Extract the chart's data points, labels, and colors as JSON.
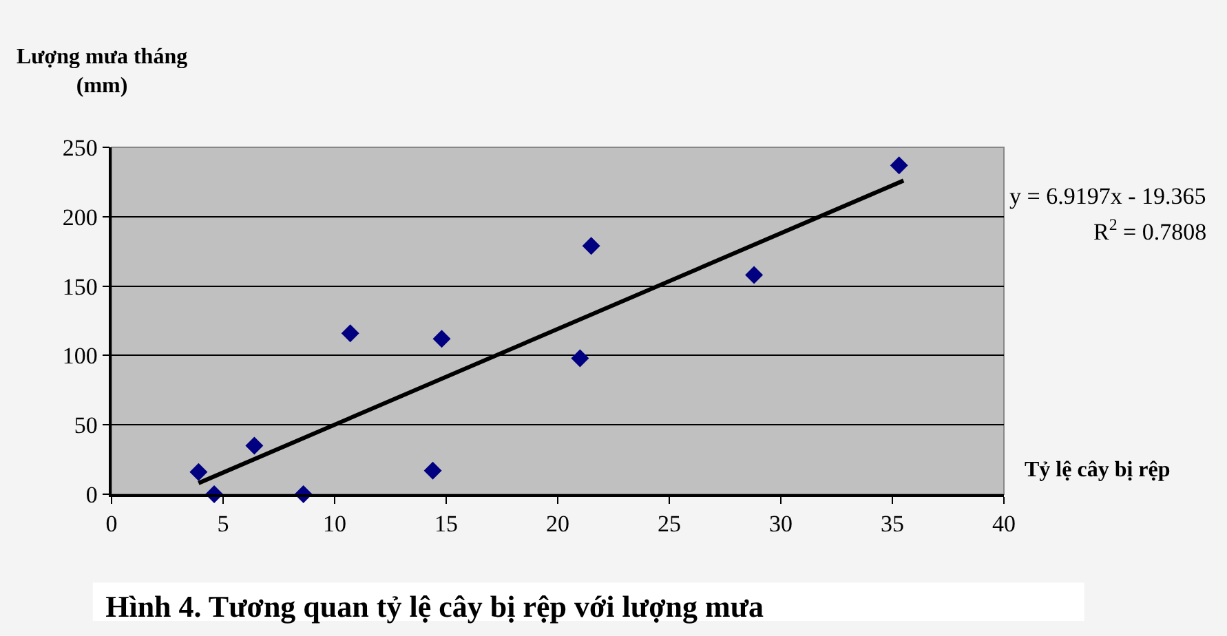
{
  "chart_data": {
    "type": "scatter",
    "title": "Hình 4. Tương quan tỷ lệ cây bị rệp với lượng mưa",
    "xlabel": "Tỷ lệ cây bị rệp",
    "ylabel": "Lượng mưa tháng\n(mm)",
    "annotations": [
      "y = 6.9197x - 19.365",
      "R$^{2}$ = 0.7808"
    ],
    "xlim": [
      0,
      40
    ],
    "xticks": [
      0,
      5,
      10,
      15,
      20,
      25,
      30,
      35,
      40
    ],
    "ylim": [
      0,
      250
    ],
    "yticks": [
      0,
      50,
      100,
      150,
      200,
      250
    ],
    "grid": "y",
    "marker": "diamond",
    "series": [
      {
        "color": "#000080",
        "x": [
          3.9,
          4.6,
          6.4,
          8.6,
          10.7,
          14.4,
          14.8,
          21.0,
          21.5,
          28.8,
          35.3
        ],
        "values": [
          16,
          0,
          35,
          0,
          116,
          17,
          112,
          98,
          179,
          158,
          237
        ]
      },
      {
        "type": "line",
        "color": "#000000",
        "x": [
          3.9,
          35.5
        ],
        "values": [
          8,
          226
        ],
        "marker": "none",
        "line_style": "solid"
      }
    ]
  }
}
